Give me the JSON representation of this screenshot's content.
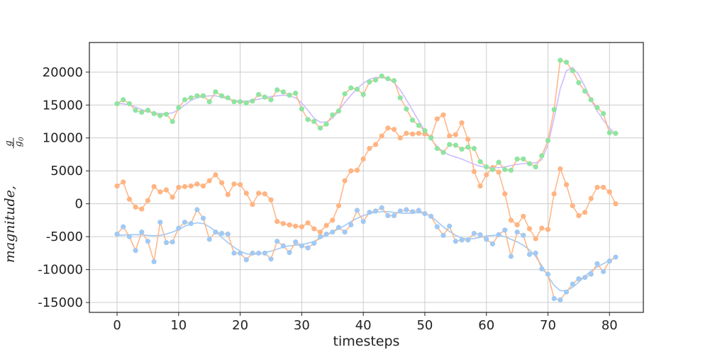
{
  "chart_data": {
    "type": "line",
    "xlabel": "timesteps",
    "ylabel": {
      "main": "magnitude",
      "frac_num": "g",
      "frac_den": "g",
      "frac_den_sub": "0"
    },
    "xlim": [
      -4.5,
      85.5
    ],
    "ylim": [
      -16500,
      24500
    ],
    "xticks": [
      0,
      10,
      20,
      30,
      40,
      50,
      60,
      70,
      80
    ],
    "yticks": [
      -15000,
      -10000,
      -5000,
      0,
      5000,
      10000,
      15000,
      20000
    ],
    "grid": true,
    "legend": "none",
    "series": [
      {
        "marker_color": "#a1c9f4",
        "line_color": "#ffb482",
        "smooth_color": "#a1c9f4",
        "values": [
          -4600,
          -3500,
          -5000,
          -7100,
          -4300,
          -5700,
          -8800,
          -2800,
          -5900,
          -5800,
          -3700,
          -2800,
          -3000,
          -900,
          -2200,
          -5400,
          -4300,
          -4500,
          -4600,
          -7500,
          -7500,
          -8500,
          -7500,
          -7500,
          -7500,
          -8400,
          -5700,
          -6400,
          -7400,
          -5800,
          -6400,
          -6700,
          -6000,
          -5000,
          -4600,
          -4300,
          -3600,
          -4300,
          -3200,
          -1000,
          -2700,
          -1300,
          -1100,
          -600,
          -1800,
          -1800,
          -1100,
          -900,
          -1200,
          -1000,
          -1500,
          -1900,
          -3500,
          -4800,
          -3400,
          -5700,
          -5500,
          -5500,
          -4500,
          -4700,
          -5400,
          -6100,
          -4700,
          -4000,
          -8000,
          -4300,
          -4800,
          -7700,
          -7500,
          -9900,
          -10700,
          -14400,
          -14600,
          -13400,
          -12200,
          -11400,
          -11200,
          -10700,
          -9100,
          -10300,
          -8700,
          -8100
        ],
        "smooth": [
          -4800,
          -4750,
          -4700,
          -4700,
          -4700,
          -4800,
          -4850,
          -4800,
          -4600,
          -4300,
          -3900,
          -3400,
          -3100,
          -2900,
          -3000,
          -3500,
          -4200,
          -5100,
          -5900,
          -6600,
          -7200,
          -7600,
          -7700,
          -7600,
          -7400,
          -7200,
          -6900,
          -6600,
          -6400,
          -6300,
          -6200,
          -6000,
          -5700,
          -5300,
          -4800,
          -4300,
          -3800,
          -3300,
          -2700,
          -2200,
          -1800,
          -1500,
          -1300,
          -1200,
          -1200,
          -1300,
          -1400,
          -1450,
          -1400,
          -1350,
          -1450,
          -1900,
          -2700,
          -3500,
          -4200,
          -4800,
          -5200,
          -5350,
          -5300,
          -5100,
          -4900,
          -4800,
          -4800,
          -5000,
          -5400,
          -5800,
          -6300,
          -7000,
          -8000,
          -9400,
          -11000,
          -12400,
          -13200,
          -13200,
          -12700,
          -11900,
          -11000,
          -10200,
          -9600,
          -9100,
          -8600,
          -8200
        ]
      },
      {
        "marker_color": "#ffb482",
        "line_color": "#ffb482",
        "smooth_color": "#8de5a1",
        "values": [
          2700,
          3300,
          700,
          -500,
          -800,
          500,
          2600,
          1800,
          2100,
          1000,
          2500,
          2600,
          2700,
          3000,
          2700,
          3500,
          4400,
          3200,
          1400,
          3000,
          2900,
          1600,
          -100,
          1600,
          1500,
          600,
          -2700,
          -3000,
          -3200,
          -3400,
          -3500,
          -2900,
          -3800,
          -4300,
          -3300,
          -2500,
          -300,
          3500,
          5000,
          5100,
          6800,
          8400,
          9000,
          10300,
          11500,
          11300,
          10000,
          10700,
          10600,
          10700,
          10600,
          10100,
          12900,
          13500,
          10300,
          10500,
          12300,
          9800,
          4900,
          2700,
          4400,
          5500,
          4800,
          1500,
          -2500,
          -3200,
          -1900,
          -3800,
          -5300,
          -3700,
          -3900,
          1500,
          5300,
          2900,
          -300,
          -1800,
          -1300,
          800,
          2500,
          2500,
          1800,
          0
        ]
      },
      {
        "marker_color": "#8de5a1",
        "line_color": "#ffb482",
        "smooth_color": "#d0bbff",
        "values": [
          15200,
          15800,
          15200,
          14200,
          13900,
          14200,
          13700,
          13400,
          13600,
          12500,
          14600,
          15800,
          16100,
          16400,
          16400,
          15500,
          17000,
          16400,
          16100,
          15500,
          15500,
          15300,
          15600,
          16600,
          16200,
          15800,
          17300,
          17000,
          16500,
          16800,
          14400,
          12800,
          12500,
          11500,
          12100,
          13500,
          14100,
          16700,
          17600,
          17400,
          16600,
          18500,
          18800,
          19400,
          19000,
          18700,
          16100,
          14400,
          12700,
          11900,
          11100,
          10000,
          8400,
          7800,
          9000,
          8900,
          8300,
          8600,
          8400,
          6400,
          5600,
          5200,
          6300,
          5200,
          5100,
          6800,
          6800,
          6100,
          5600,
          7300,
          9600,
          14300,
          21800,
          21500,
          20200,
          18400,
          17100,
          15800,
          14600,
          13700,
          10800,
          10700
        ],
        "smooth": [
          15300,
          15200,
          15000,
          14700,
          14300,
          14000,
          13800,
          13700,
          13700,
          13800,
          14300,
          15000,
          15700,
          16100,
          16300,
          16400,
          16400,
          16200,
          15900,
          15700,
          15600,
          15600,
          15700,
          15900,
          16100,
          16300,
          16400,
          16500,
          16400,
          16100,
          15300,
          14200,
          13000,
          12400,
          12400,
          13000,
          14100,
          15400,
          16500,
          17500,
          18300,
          18900,
          19200,
          19200,
          19000,
          18400,
          17300,
          15800,
          14200,
          12600,
          11100,
          9800,
          8700,
          7900,
          7400,
          7100,
          6800,
          6400,
          6000,
          5700,
          5500,
          5500,
          5500,
          5600,
          5800,
          6000,
          6100,
          6200,
          6200,
          6700,
          9000,
          13000,
          17500,
          20200,
          20700,
          19600,
          17800,
          15800,
          14100,
          12700,
          11500,
          10600
        ]
      }
    ]
  }
}
